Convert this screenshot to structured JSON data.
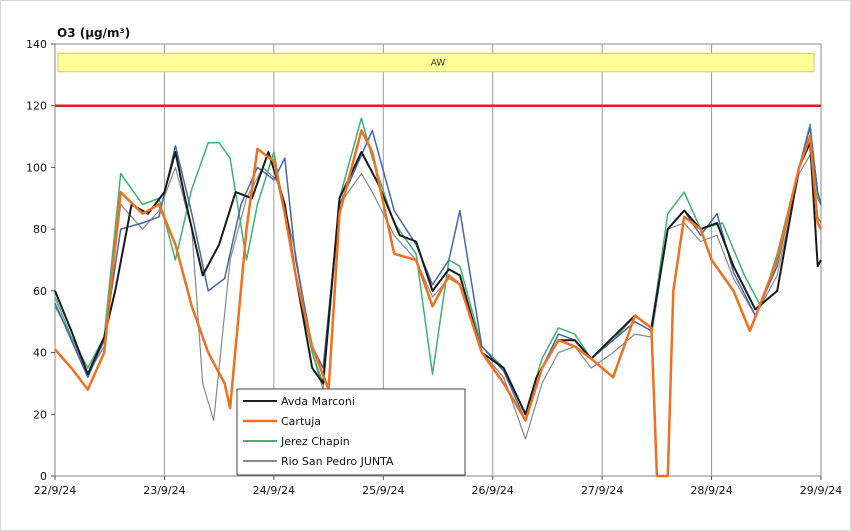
{
  "chart_data": {
    "type": "line",
    "title": "O3 (µg/m³)",
    "ylim": [
      0,
      140
    ],
    "yticks": [
      0,
      20,
      40,
      60,
      80,
      100,
      120,
      140
    ],
    "xlim": [
      0,
      7
    ],
    "xticks": [
      {
        "x": 0,
        "label": "22/9/24"
      },
      {
        "x": 1,
        "label": "23/9/24"
      },
      {
        "x": 2,
        "label": "24/9/24"
      },
      {
        "x": 3,
        "label": "25/9/24"
      },
      {
        "x": 4,
        "label": "26/9/24"
      },
      {
        "x": 5,
        "label": "27/9/24"
      },
      {
        "x": 6,
        "label": "28/9/24"
      },
      {
        "x": 7,
        "label": "29/9/24"
      }
    ],
    "threshold": {
      "value": 120,
      "color": "#e02020"
    },
    "band": {
      "label": "AW",
      "y_from": 131,
      "y_to": 137,
      "color": "#ffff99"
    },
    "legend_position": "bottom-center",
    "series": [
      {
        "name": "Avda Marconi",
        "color": "#1a1a1a",
        "width": 2,
        "points": [
          [
            0,
            60
          ],
          [
            0.15,
            47
          ],
          [
            0.3,
            33
          ],
          [
            0.45,
            45
          ],
          [
            0.55,
            60
          ],
          [
            0.7,
            88
          ],
          [
            0.85,
            85
          ],
          [
            1.0,
            92
          ],
          [
            1.1,
            105
          ],
          [
            1.2,
            88
          ],
          [
            1.35,
            65
          ],
          [
            1.5,
            75
          ],
          [
            1.65,
            92
          ],
          [
            1.8,
            90
          ],
          [
            1.95,
            105
          ],
          [
            2.1,
            88
          ],
          [
            2.2,
            65
          ],
          [
            2.35,
            35
          ],
          [
            2.45,
            30
          ],
          [
            2.6,
            90
          ],
          [
            2.8,
            105
          ],
          [
            2.95,
            95
          ],
          [
            3.15,
            78
          ],
          [
            3.3,
            76
          ],
          [
            3.45,
            60
          ],
          [
            3.6,
            67
          ],
          [
            3.7,
            65
          ],
          [
            3.9,
            40
          ],
          [
            4.1,
            35
          ],
          [
            4.3,
            20
          ],
          [
            4.4,
            32
          ],
          [
            4.6,
            44
          ],
          [
            4.75,
            44
          ],
          [
            4.9,
            38
          ],
          [
            5.1,
            45
          ],
          [
            5.3,
            52
          ],
          [
            5.45,
            48
          ],
          [
            5.6,
            80
          ],
          [
            5.75,
            86
          ],
          [
            5.9,
            80
          ],
          [
            6.05,
            82
          ],
          [
            6.2,
            68
          ],
          [
            6.4,
            54
          ],
          [
            6.6,
            60
          ],
          [
            6.8,
            100
          ],
          [
            6.9,
            108
          ],
          [
            6.97,
            68
          ],
          [
            7.0,
            70
          ]
        ]
      },
      {
        "name": "Cartuja",
        "color": "#f07020",
        "width": 2.5,
        "points": [
          [
            0,
            41
          ],
          [
            0.15,
            35
          ],
          [
            0.3,
            28
          ],
          [
            0.45,
            40
          ],
          [
            0.6,
            92
          ],
          [
            0.8,
            85
          ],
          [
            0.95,
            88
          ],
          [
            1.1,
            75
          ],
          [
            1.25,
            55
          ],
          [
            1.4,
            40
          ],
          [
            1.55,
            30
          ],
          [
            1.6,
            22
          ],
          [
            1.75,
            80
          ],
          [
            1.85,
            106
          ],
          [
            2.0,
            102
          ],
          [
            2.1,
            85
          ],
          [
            2.2,
            65
          ],
          [
            2.35,
            42
          ],
          [
            2.5,
            28
          ],
          [
            2.6,
            85
          ],
          [
            2.8,
            112
          ],
          [
            2.9,
            105
          ],
          [
            3.1,
            72
          ],
          [
            3.3,
            70
          ],
          [
            3.45,
            55
          ],
          [
            3.6,
            65
          ],
          [
            3.7,
            62
          ],
          [
            3.9,
            40
          ],
          [
            4.1,
            30
          ],
          [
            4.3,
            18
          ],
          [
            4.45,
            35
          ],
          [
            4.6,
            44
          ],
          [
            4.75,
            42
          ],
          [
            4.9,
            38
          ],
          [
            5.1,
            32
          ],
          [
            5.3,
            52
          ],
          [
            5.45,
            48
          ],
          [
            5.5,
            0
          ],
          [
            5.6,
            0
          ],
          [
            5.65,
            60
          ],
          [
            5.75,
            84
          ],
          [
            5.9,
            80
          ],
          [
            6.0,
            70
          ],
          [
            6.2,
            60
          ],
          [
            6.35,
            47
          ],
          [
            6.6,
            70
          ],
          [
            6.8,
            100
          ],
          [
            6.9,
            110
          ],
          [
            6.97,
            82
          ],
          [
            7.0,
            80
          ]
        ]
      },
      {
        "name": "Jerez Chapin",
        "color": "#3cb371",
        "width": 1.5,
        "points": [
          [
            0,
            58
          ],
          [
            0.15,
            45
          ],
          [
            0.3,
            35
          ],
          [
            0.45,
            45
          ],
          [
            0.6,
            98
          ],
          [
            0.8,
            88
          ],
          [
            0.95,
            90
          ],
          [
            1.1,
            70
          ],
          [
            1.25,
            93
          ],
          [
            1.4,
            108
          ],
          [
            1.5,
            108
          ],
          [
            1.6,
            103
          ],
          [
            1.75,
            70
          ],
          [
            1.85,
            88
          ],
          [
            2.0,
            105
          ],
          [
            2.1,
            85
          ],
          [
            2.2,
            65
          ],
          [
            2.35,
            40
          ],
          [
            2.45,
            30
          ],
          [
            2.6,
            90
          ],
          [
            2.8,
            116
          ],
          [
            2.9,
            103
          ],
          [
            3.1,
            82
          ],
          [
            3.3,
            72
          ],
          [
            3.45,
            33
          ],
          [
            3.6,
            70
          ],
          [
            3.7,
            68
          ],
          [
            3.9,
            42
          ],
          [
            4.1,
            35
          ],
          [
            4.3,
            20
          ],
          [
            4.45,
            38
          ],
          [
            4.6,
            48
          ],
          [
            4.75,
            46
          ],
          [
            4.9,
            38
          ],
          [
            5.1,
            44
          ],
          [
            5.3,
            52
          ],
          [
            5.45,
            48
          ],
          [
            5.6,
            85
          ],
          [
            5.75,
            92
          ],
          [
            5.9,
            80
          ],
          [
            6.1,
            82
          ],
          [
            6.3,
            65
          ],
          [
            6.45,
            55
          ],
          [
            6.6,
            72
          ],
          [
            6.8,
            100
          ],
          [
            6.9,
            114
          ],
          [
            6.97,
            90
          ],
          [
            7.0,
            88
          ]
        ]
      },
      {
        "name": "Rio San Pedro JUNTA",
        "color": "#888888",
        "width": 1.2,
        "points": [
          [
            0,
            55
          ],
          [
            0.15,
            45
          ],
          [
            0.3,
            33
          ],
          [
            0.45,
            42
          ],
          [
            0.6,
            88
          ],
          [
            0.8,
            80
          ],
          [
            0.95,
            86
          ],
          [
            1.1,
            100
          ],
          [
            1.25,
            80
          ],
          [
            1.35,
            30
          ],
          [
            1.45,
            18
          ],
          [
            1.6,
            70
          ],
          [
            1.75,
            90
          ],
          [
            1.9,
            100
          ],
          [
            2.05,
            95
          ],
          [
            2.2,
            72
          ],
          [
            2.35,
            40
          ],
          [
            2.45,
            28
          ],
          [
            2.6,
            88
          ],
          [
            2.8,
            98
          ],
          [
            2.9,
            92
          ],
          [
            3.1,
            78
          ],
          [
            3.3,
            70
          ],
          [
            3.45,
            58
          ],
          [
            3.6,
            64
          ],
          [
            3.7,
            62
          ],
          [
            3.9,
            40
          ],
          [
            4.1,
            32
          ],
          [
            4.3,
            12
          ],
          [
            4.45,
            30
          ],
          [
            4.6,
            40
          ],
          [
            4.75,
            42
          ],
          [
            4.9,
            35
          ],
          [
            5.1,
            40
          ],
          [
            5.3,
            46
          ],
          [
            5.45,
            45
          ],
          [
            5.6,
            80
          ],
          [
            5.75,
            82
          ],
          [
            5.9,
            76
          ],
          [
            6.05,
            78
          ],
          [
            6.2,
            64
          ],
          [
            6.4,
            52
          ],
          [
            6.6,
            65
          ],
          [
            6.8,
            98
          ],
          [
            6.9,
            104
          ],
          [
            6.97,
            84
          ],
          [
            7.0,
            82
          ]
        ]
      },
      {
        "name": "",
        "color": "#4466aa",
        "width": 1.5,
        "legend": false,
        "points": [
          [
            0,
            56
          ],
          [
            0.15,
            44
          ],
          [
            0.3,
            32
          ],
          [
            0.45,
            44
          ],
          [
            0.6,
            80
          ],
          [
            0.8,
            82
          ],
          [
            0.95,
            84
          ],
          [
            1.1,
            107
          ],
          [
            1.25,
            85
          ],
          [
            1.4,
            60
          ],
          [
            1.55,
            64
          ],
          [
            1.7,
            88
          ],
          [
            1.85,
            100
          ],
          [
            2.0,
            96
          ],
          [
            2.1,
            103
          ],
          [
            2.2,
            70
          ],
          [
            2.35,
            42
          ],
          [
            2.45,
            35
          ],
          [
            2.6,
            88
          ],
          [
            2.8,
            104
          ],
          [
            2.9,
            112
          ],
          [
            3.1,
            86
          ],
          [
            3.3,
            75
          ],
          [
            3.45,
            62
          ],
          [
            3.6,
            70
          ],
          [
            3.7,
            86
          ],
          [
            3.9,
            42
          ],
          [
            4.1,
            34
          ],
          [
            4.3,
            18
          ],
          [
            4.45,
            35
          ],
          [
            4.6,
            46
          ],
          [
            4.75,
            44
          ],
          [
            4.9,
            38
          ],
          [
            5.1,
            44
          ],
          [
            5.3,
            50
          ],
          [
            5.45,
            47
          ],
          [
            5.6,
            80
          ],
          [
            5.75,
            86
          ],
          [
            5.9,
            78
          ],
          [
            6.05,
            85
          ],
          [
            6.2,
            66
          ],
          [
            6.4,
            52
          ],
          [
            6.6,
            68
          ],
          [
            6.8,
            100
          ],
          [
            6.9,
            113
          ],
          [
            6.97,
            92
          ],
          [
            7.0,
            88
          ]
        ]
      }
    ]
  }
}
